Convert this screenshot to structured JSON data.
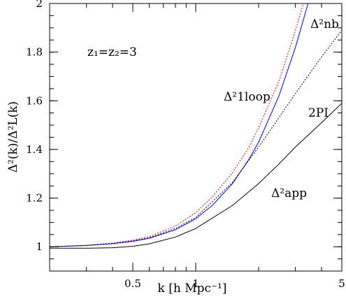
{
  "chart_data": {
    "type": "line",
    "xlabel": "k [h Mpc⁻¹]",
    "ylabel": "Δ²(k)/Δ²L(k)",
    "xscale": "log",
    "xlim": [
      0.2,
      5
    ],
    "ylim": [
      0.9,
      2.0
    ],
    "x_ticks": [
      {
        "value": 0.5,
        "label": "0.5"
      },
      {
        "value": 1,
        "label": "1"
      },
      {
        "value": 5,
        "label": "5"
      }
    ],
    "y_ticks": [
      {
        "value": 1.0,
        "label": "1"
      },
      {
        "value": 1.2,
        "label": "1.2"
      },
      {
        "value": 1.4,
        "label": "1.4"
      },
      {
        "value": 1.6,
        "label": "1.6"
      },
      {
        "value": 1.8,
        "label": "1.8"
      },
      {
        "value": 2.0,
        "label": "2"
      }
    ],
    "annotation": "z₁=z₂=3",
    "grid": false,
    "series": [
      {
        "name": "Δ²nb",
        "color": "#0000ff",
        "dash": "solid",
        "x": [
          0.2,
          0.3,
          0.4,
          0.5,
          0.6,
          0.8,
          1.0,
          1.2,
          1.5,
          1.8,
          2.0,
          2.5,
          3.0,
          3.5
        ],
        "y": [
          1.0,
          1.005,
          1.013,
          1.022,
          1.035,
          1.07,
          1.115,
          1.17,
          1.26,
          1.36,
          1.43,
          1.62,
          1.82,
          2.02
        ]
      },
      {
        "name": "Δ²1loop",
        "color": "#ff0000",
        "dash": "dotted",
        "x": [
          0.2,
          0.3,
          0.4,
          0.5,
          0.6,
          0.8,
          1.0,
          1.2,
          1.5,
          1.8,
          2.0,
          2.5,
          3.0,
          3.3
        ],
        "y": [
          1.0,
          1.006,
          1.015,
          1.027,
          1.042,
          1.085,
          1.14,
          1.205,
          1.305,
          1.41,
          1.49,
          1.68,
          1.89,
          2.01
        ]
      },
      {
        "name": "2PI",
        "color": "#000000",
        "dash": "dotted",
        "x": [
          0.2,
          0.3,
          0.4,
          0.5,
          0.6,
          0.8,
          1.0,
          1.5,
          2.0,
          2.5,
          3.0,
          4.0,
          5.0
        ],
        "y": [
          1.0,
          1.005,
          1.013,
          1.024,
          1.037,
          1.075,
          1.12,
          1.265,
          1.41,
          1.53,
          1.63,
          1.78,
          1.89
        ]
      },
      {
        "name": "Δ²app",
        "color": "#000000",
        "dash": "solid",
        "x": [
          0.2,
          0.3,
          0.4,
          0.5,
          0.6,
          0.8,
          1.0,
          1.5,
          2.0,
          2.5,
          3.0,
          4.0,
          5.0
        ],
        "y": [
          0.994,
          0.994,
          0.996,
          1.002,
          1.012,
          1.04,
          1.075,
          1.17,
          1.26,
          1.34,
          1.41,
          1.51,
          1.59
        ]
      }
    ]
  }
}
